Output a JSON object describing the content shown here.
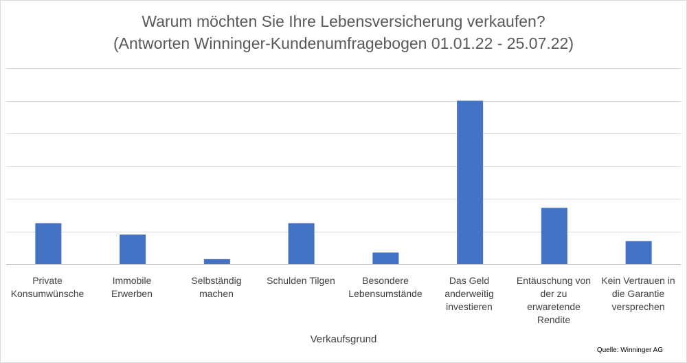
{
  "chart_data": {
    "type": "bar",
    "title": "Warum möchten Sie Ihre Lebensversicherung verkaufen?",
    "subtitle": "(Antworten Winninger-Kundenumfragebogen 01.01.22 - 25.07.22)",
    "xlabel": "Verkaufsgrund",
    "ylabel": "",
    "categories": [
      "Private Konsumwünsche",
      "Immobile Erwerben",
      "Selbständig machen",
      "Schulden Tilgen",
      "Besondere Lebensumstände",
      "Das Geld anderweitig investieren",
      "Entäuschung von der zu erwaretende Rendite",
      "Kein Vertrauen in die Garantie versprechen"
    ],
    "values": [
      12.5,
      9,
      1.5,
      12.5,
      3.5,
      50,
      17.2,
      7
    ],
    "ylim": [
      0,
      60
    ],
    "grid": true,
    "gridlines": 6,
    "legend": false,
    "bar_color": "#4472c4",
    "source": "Quelle: Winninger AG"
  }
}
